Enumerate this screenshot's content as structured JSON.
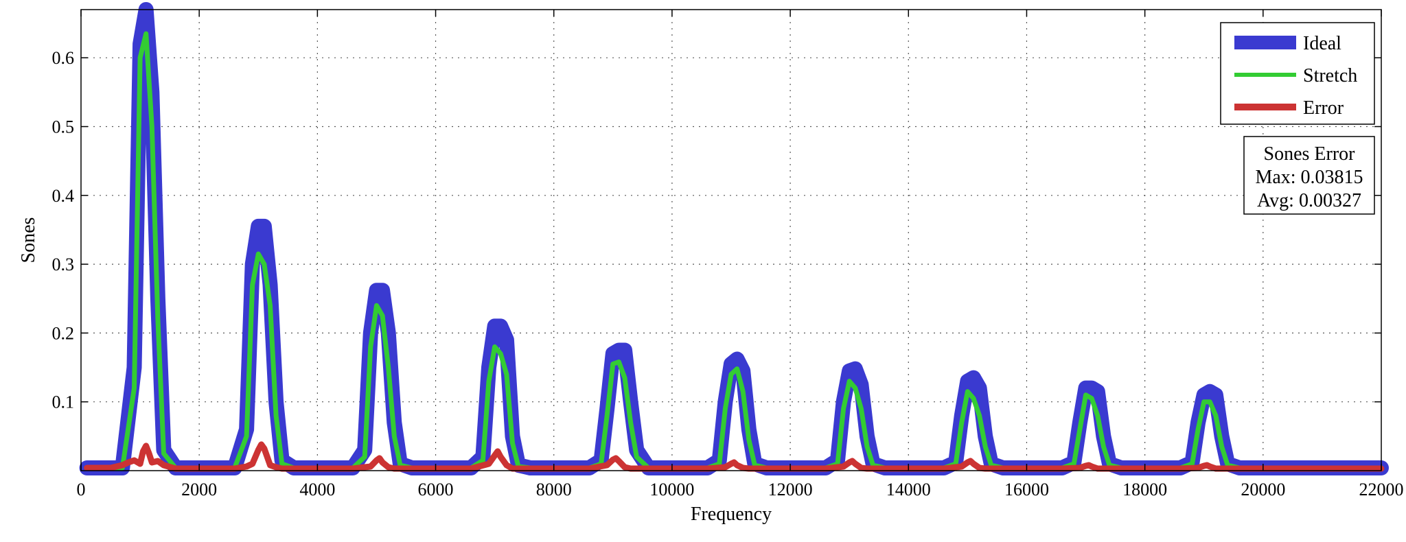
{
  "chart_data": {
    "type": "line",
    "title": "",
    "xlabel": "Frequency",
    "ylabel": "Sones",
    "xlim": [
      0,
      22000
    ],
    "ylim": [
      0,
      0.67
    ],
    "xticks": [
      0,
      2000,
      4000,
      6000,
      8000,
      10000,
      12000,
      14000,
      16000,
      18000,
      20000,
      22000
    ],
    "xtick_labels": [
      "0",
      "2000",
      "4000",
      "6000",
      "8000",
      "10000",
      "12000",
      "14000",
      "16000",
      "18000",
      "20000",
      "22000"
    ],
    "yticks": [
      0.1,
      0.2,
      0.3,
      0.4,
      0.5,
      0.6
    ],
    "ytick_labels": [
      "0.1",
      "0.2",
      "0.3",
      "0.4",
      "0.5",
      "0.6"
    ],
    "grid": true,
    "legend_position": "top-right",
    "series": [
      {
        "name": "Ideal",
        "color": "#3a3ad0",
        "x": [
          100,
          700,
          900,
          1000,
          1100,
          1200,
          1300,
          1400,
          1600,
          2600,
          2800,
          2900,
          3000,
          3100,
          3200,
          3300,
          3400,
          3600,
          4600,
          4800,
          4900,
          5000,
          5100,
          5200,
          5300,
          5400,
          5600,
          6600,
          6800,
          6900,
          7000,
          7100,
          7200,
          7300,
          7400,
          7600,
          8600,
          8800,
          8900,
          9000,
          9100,
          9200,
          9300,
          9400,
          9600,
          10600,
          10800,
          10900,
          11000,
          11100,
          11200,
          11300,
          11400,
          11600,
          12600,
          12800,
          12900,
          13000,
          13100,
          13200,
          13300,
          13400,
          13600,
          14600,
          14800,
          14900,
          15000,
          15100,
          15200,
          15300,
          15400,
          15600,
          16600,
          16800,
          16900,
          17000,
          17100,
          17200,
          17300,
          17400,
          17600,
          18600,
          18800,
          18900,
          19000,
          19100,
          19200,
          19300,
          19400,
          19600,
          22000
        ],
        "y": [
          0.004,
          0.004,
          0.15,
          0.62,
          0.67,
          0.55,
          0.25,
          0.03,
          0.004,
          0.004,
          0.06,
          0.3,
          0.355,
          0.355,
          0.27,
          0.1,
          0.015,
          0.004,
          0.004,
          0.03,
          0.2,
          0.262,
          0.262,
          0.2,
          0.07,
          0.01,
          0.004,
          0.004,
          0.02,
          0.15,
          0.21,
          0.21,
          0.19,
          0.05,
          0.008,
          0.004,
          0.004,
          0.015,
          0.09,
          0.17,
          0.175,
          0.175,
          0.1,
          0.03,
          0.004,
          0.004,
          0.015,
          0.1,
          0.155,
          0.162,
          0.145,
          0.06,
          0.01,
          0.004,
          0.004,
          0.015,
          0.1,
          0.145,
          0.148,
          0.125,
          0.05,
          0.01,
          0.004,
          0.004,
          0.012,
          0.08,
          0.13,
          0.135,
          0.12,
          0.05,
          0.01,
          0.004,
          0.004,
          0.012,
          0.07,
          0.12,
          0.12,
          0.115,
          0.05,
          0.01,
          0.004,
          0.004,
          0.012,
          0.07,
          0.11,
          0.115,
          0.11,
          0.05,
          0.01,
          0.004,
          0.004
        ]
      },
      {
        "name": "Stretch",
        "color": "#33cc33",
        "x": [
          100,
          700,
          900,
          1000,
          1100,
          1200,
          1300,
          1400,
          1600,
          2600,
          2800,
          2900,
          3000,
          3100,
          3200,
          3300,
          3400,
          3600,
          4600,
          4800,
          4900,
          5000,
          5100,
          5200,
          5300,
          5400,
          5600,
          6600,
          6800,
          6900,
          7000,
          7100,
          7200,
          7300,
          7400,
          7600,
          8600,
          8800,
          8900,
          9000,
          9100,
          9200,
          9300,
          9400,
          9600,
          10600,
          10800,
          10900,
          11000,
          11100,
          11200,
          11300,
          11400,
          11600,
          12600,
          12800,
          12900,
          13000,
          13100,
          13200,
          13300,
          13400,
          13600,
          14600,
          14800,
          14900,
          15000,
          15100,
          15200,
          15300,
          15400,
          15600,
          16600,
          16800,
          16900,
          17000,
          17100,
          17200,
          17300,
          17400,
          17600,
          18600,
          18800,
          18900,
          19000,
          19100,
          19200,
          19300,
          19400,
          19600,
          22000
        ],
        "y": [
          0.004,
          0.004,
          0.12,
          0.6,
          0.635,
          0.5,
          0.22,
          0.025,
          0.004,
          0.004,
          0.05,
          0.27,
          0.315,
          0.3,
          0.24,
          0.08,
          0.01,
          0.004,
          0.004,
          0.02,
          0.18,
          0.24,
          0.225,
          0.15,
          0.05,
          0.008,
          0.004,
          0.004,
          0.015,
          0.13,
          0.18,
          0.17,
          0.14,
          0.04,
          0.006,
          0.004,
          0.004,
          0.01,
          0.08,
          0.155,
          0.158,
          0.135,
          0.07,
          0.02,
          0.004,
          0.004,
          0.01,
          0.09,
          0.14,
          0.148,
          0.115,
          0.045,
          0.008,
          0.004,
          0.004,
          0.01,
          0.09,
          0.13,
          0.12,
          0.09,
          0.035,
          0.008,
          0.004,
          0.004,
          0.01,
          0.07,
          0.115,
          0.105,
          0.08,
          0.035,
          0.008,
          0.004,
          0.004,
          0.01,
          0.06,
          0.11,
          0.105,
          0.08,
          0.035,
          0.008,
          0.004,
          0.004,
          0.01,
          0.06,
          0.1,
          0.1,
          0.08,
          0.035,
          0.008,
          0.004,
          0.004
        ]
      },
      {
        "name": "Error",
        "color": "#cc3333",
        "x": [
          100,
          500,
          700,
          800,
          900,
          1000,
          1050,
          1100,
          1150,
          1200,
          1300,
          1400,
          1600,
          2600,
          2800,
          2900,
          3000,
          3050,
          3100,
          3150,
          3200,
          3300,
          3400,
          3600,
          4600,
          4900,
          5000,
          5050,
          5100,
          5200,
          5300,
          5400,
          6600,
          6900,
          7000,
          7050,
          7100,
          7200,
          7300,
          7400,
          8600,
          8900,
          9000,
          9050,
          9100,
          9200,
          9300,
          9400,
          10600,
          10900,
          11000,
          11050,
          11100,
          11200,
          11300,
          11400,
          12600,
          12900,
          13000,
          13050,
          13100,
          13200,
          13300,
          13400,
          14600,
          14900,
          15000,
          15050,
          15100,
          15200,
          15300,
          15400,
          16600,
          16900,
          17000,
          17050,
          17100,
          17200,
          17300,
          17400,
          18600,
          18900,
          19000,
          19050,
          19100,
          19200,
          19300,
          19400,
          22000
        ],
        "y": [
          0.004,
          0.004,
          0.008,
          0.012,
          0.015,
          0.01,
          0.028,
          0.036,
          0.025,
          0.012,
          0.014,
          0.008,
          0.003,
          0.003,
          0.006,
          0.01,
          0.03,
          0.038,
          0.032,
          0.02,
          0.008,
          0.005,
          0.003,
          0.003,
          0.003,
          0.006,
          0.015,
          0.018,
          0.012,
          0.005,
          0.003,
          0.003,
          0.003,
          0.01,
          0.022,
          0.028,
          0.02,
          0.008,
          0.003,
          0.003,
          0.003,
          0.008,
          0.016,
          0.018,
          0.014,
          0.005,
          0.003,
          0.003,
          0.003,
          0.005,
          0.01,
          0.012,
          0.008,
          0.004,
          0.003,
          0.003,
          0.003,
          0.006,
          0.012,
          0.014,
          0.01,
          0.004,
          0.003,
          0.003,
          0.003,
          0.006,
          0.012,
          0.014,
          0.01,
          0.004,
          0.003,
          0.003,
          0.003,
          0.004,
          0.007,
          0.008,
          0.006,
          0.003,
          0.003,
          0.003,
          0.003,
          0.004,
          0.007,
          0.008,
          0.006,
          0.003,
          0.003,
          0.003,
          0.003
        ]
      }
    ],
    "annotation": {
      "title": "Sones Error",
      "max_text": "Max: 0.03815",
      "avg_text": "Avg: 0.00327"
    }
  }
}
